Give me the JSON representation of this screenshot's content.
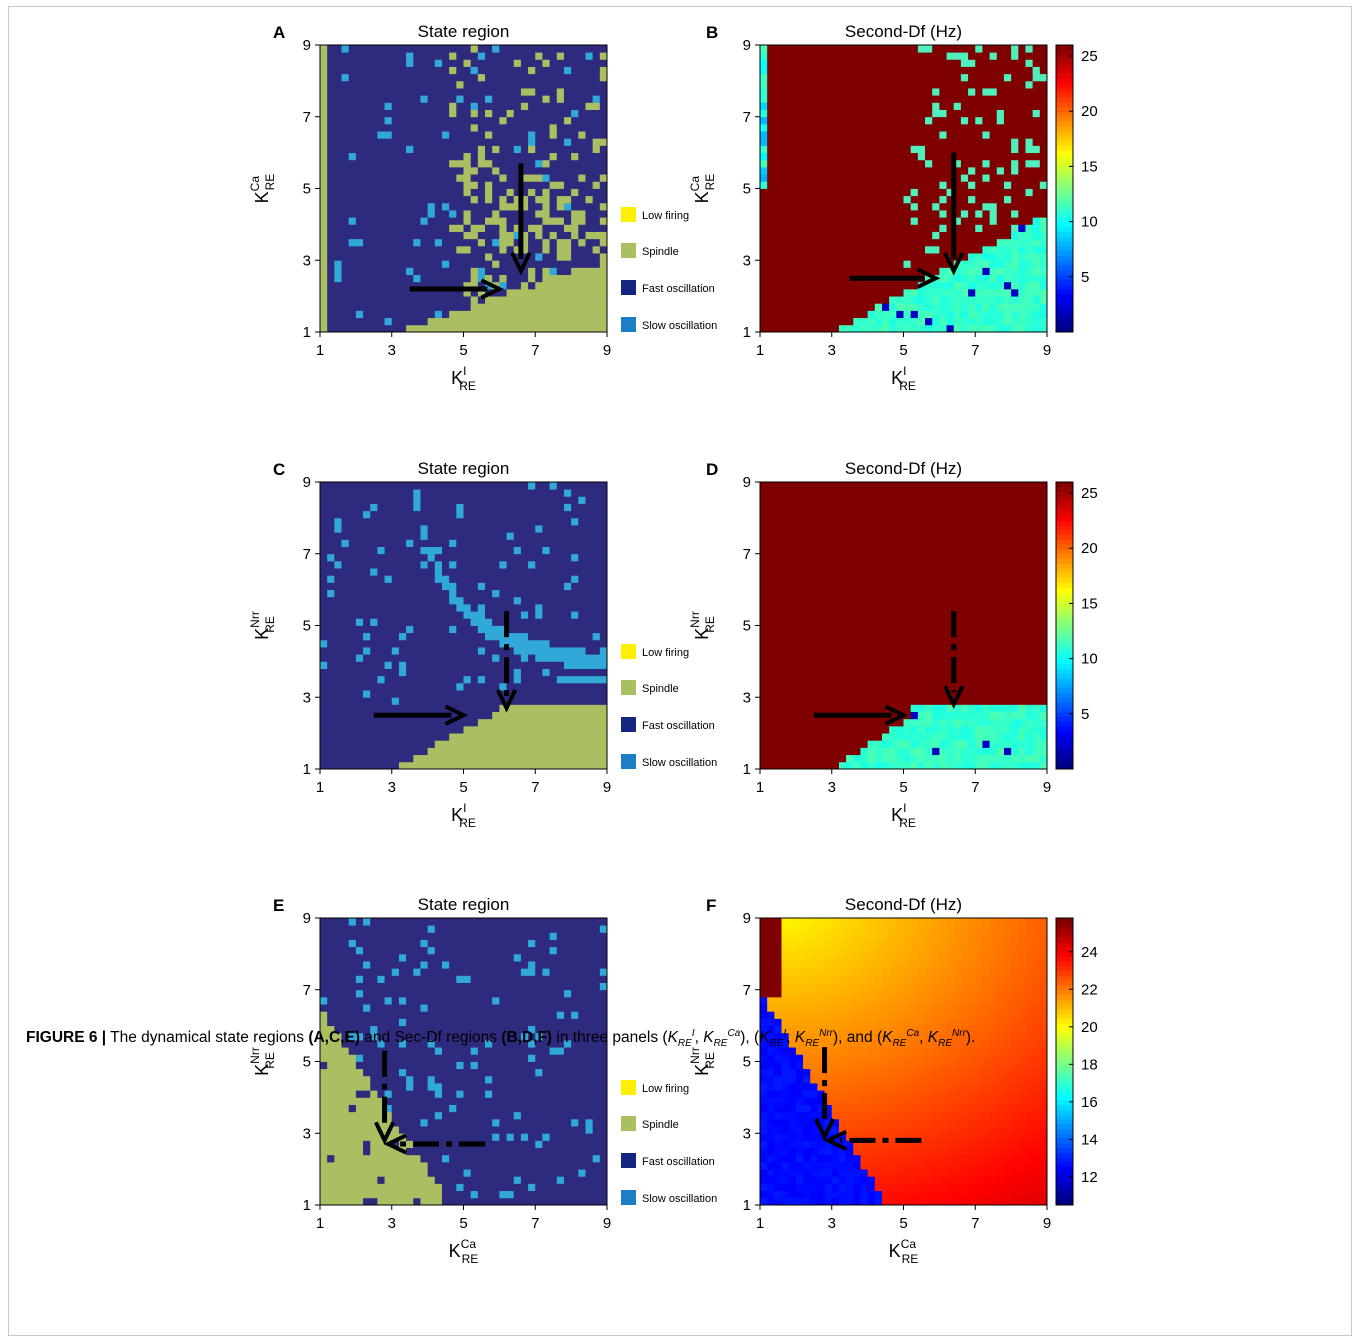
{
  "legend_items": [
    {
      "label": "Low firing",
      "color": "#ffef00"
    },
    {
      "label": "Spindle",
      "color": "#a9bf62"
    },
    {
      "label": "Fast oscillation",
      "color": "#14267f"
    },
    {
      "label": "Slow oscillation",
      "color": "#1a7fc6"
    }
  ],
  "colors": {
    "fast": "#2e2a7e",
    "spindle": "#a9bf62",
    "slow": "#30a8d8",
    "dfHigh": "#7f0000",
    "dfLow": "#4ff0bd",
    "arrow": "#000000"
  },
  "chart_data": [
    {
      "panel": "A",
      "type": "heatmap",
      "title": "State region",
      "xlabel": {
        "base": "K",
        "sub": "RE",
        "sup": "I"
      },
      "ylabel": {
        "base": "K",
        "sub": "RE",
        "sup": "Ca"
      },
      "xlim": [
        1,
        9
      ],
      "ylim": [
        1,
        9
      ],
      "ticks": [
        1,
        3,
        5,
        7,
        9
      ],
      "legend": true,
      "regions": {
        "default": "Fast oscillation",
        "lower": "Spindle",
        "scatter": [
          "Spindle",
          "Slow oscillation"
        ]
      },
      "arrows": [
        {
          "style": "solid",
          "from": [
            3.5,
            2.2
          ],
          "to": [
            6.0,
            2.2
          ]
        },
        {
          "style": "solid",
          "from": [
            6.6,
            5.7
          ],
          "to": [
            6.6,
            2.7
          ]
        }
      ]
    },
    {
      "panel": "B",
      "type": "heatmap",
      "title": "Second-Df (Hz)",
      "xlabel": {
        "base": "K",
        "sub": "RE",
        "sup": "I"
      },
      "ylabel": {
        "base": "K",
        "sub": "RE",
        "sup": "Ca"
      },
      "xlim": [
        1,
        9
      ],
      "ylim": [
        1,
        9
      ],
      "ticks": [
        1,
        3,
        5,
        7,
        9
      ],
      "colorbar": {
        "min": 0,
        "max": 26,
        "ticks": [
          5,
          10,
          15,
          20,
          25
        ],
        "colormap": "jet"
      },
      "regions": {
        "upper_hz": 25.6,
        "lower_hz": 12
      },
      "arrows": [
        {
          "style": "solid",
          "from": [
            3.5,
            2.5
          ],
          "to": [
            5.9,
            2.5
          ]
        },
        {
          "style": "solid",
          "from": [
            6.4,
            6.0
          ],
          "to": [
            6.4,
            2.7
          ]
        }
      ]
    },
    {
      "panel": "C",
      "type": "heatmap",
      "title": "State region",
      "xlabel": {
        "base": "K",
        "sub": "RE",
        "sup": "I"
      },
      "ylabel": {
        "base": "K",
        "sub": "RE",
        "sup": "Nrr"
      },
      "xlim": [
        1,
        9
      ],
      "ylim": [
        1,
        9
      ],
      "ticks": [
        1,
        3,
        5,
        7,
        9
      ],
      "legend": true,
      "regions": {
        "default": "Fast oscillation",
        "lower": "Spindle",
        "bands": "Slow oscillation"
      },
      "arrows": [
        {
          "style": "solid",
          "from": [
            2.5,
            2.5
          ],
          "to": [
            5.0,
            2.5
          ]
        },
        {
          "style": "dashdot",
          "from": [
            6.2,
            5.4
          ],
          "to": [
            6.2,
            2.7
          ]
        }
      ]
    },
    {
      "panel": "D",
      "type": "heatmap",
      "title": "Second-Df (Hz)",
      "xlabel": {
        "base": "K",
        "sub": "RE",
        "sup": "I"
      },
      "ylabel": {
        "base": "K",
        "sub": "RE",
        "sup": "Nrr"
      },
      "xlim": [
        1,
        9
      ],
      "ylim": [
        1,
        9
      ],
      "ticks": [
        1,
        3,
        5,
        7,
        9
      ],
      "colorbar": {
        "min": 0,
        "max": 26,
        "ticks": [
          5,
          10,
          15,
          20,
          25
        ],
        "colormap": "jet"
      },
      "regions": {
        "upper_hz": 25.6,
        "lower_hz": 12
      },
      "arrows": [
        {
          "style": "solid",
          "from": [
            2.5,
            2.5
          ],
          "to": [
            5.0,
            2.5
          ]
        },
        {
          "style": "dashdot",
          "from": [
            6.4,
            5.4
          ],
          "to": [
            6.4,
            2.8
          ]
        }
      ]
    },
    {
      "panel": "E",
      "type": "heatmap",
      "title": "State region",
      "xlabel": {
        "base": "K",
        "sub": "RE",
        "sup": "Ca"
      },
      "ylabel": {
        "base": "K",
        "sub": "RE",
        "sup": "Nrr"
      },
      "xlim": [
        1,
        9
      ],
      "ylim": [
        1,
        9
      ],
      "ticks": [
        1,
        3,
        5,
        7,
        9
      ],
      "legend": true,
      "regions": {
        "default": "Fast oscillation",
        "lower_left": "Spindle",
        "scatter": "Slow oscillation"
      },
      "arrows": [
        {
          "style": "dashdot",
          "from": [
            2.8,
            5.3
          ],
          "to": [
            2.8,
            2.8
          ]
        },
        {
          "style": "dashdot",
          "from": [
            5.6,
            2.7
          ],
          "to": [
            2.9,
            2.7
          ]
        }
      ]
    },
    {
      "panel": "F",
      "type": "heatmap",
      "title": "Second-Df (Hz)",
      "xlabel": {
        "base": "K",
        "sub": "RE",
        "sup": "Ca"
      },
      "ylabel": {
        "base": "K",
        "sub": "RE",
        "sup": "Nrr"
      },
      "xlim": [
        1,
        9
      ],
      "ylim": [
        1,
        9
      ],
      "ticks": [
        1,
        3,
        5,
        7,
        9
      ],
      "colorbar": {
        "min": 10.5,
        "max": 25.8,
        "ticks": [
          12,
          14,
          16,
          18,
          20,
          22,
          24
        ],
        "colormap": "jet"
      },
      "regions": {
        "lower_left_hz": 11,
        "gradient_hz": [
          17.5,
          24
        ]
      },
      "arrows": [
        {
          "style": "dashdot",
          "from": [
            2.8,
            5.4
          ],
          "to": [
            2.8,
            2.9
          ]
        },
        {
          "style": "dashdot",
          "from": [
            5.5,
            2.8
          ],
          "to": [
            2.9,
            2.8
          ]
        }
      ]
    }
  ],
  "caption": {
    "label": "FIGURE 6 |",
    "t1": " The dynamical state regions ",
    "b1": "(A,C,E)",
    "t2": " and Sec-Df regions ",
    "b2": "(B,D,F)",
    "t3": " in three panels (",
    "p1a": "K",
    "p1a_sub": "RE",
    "p1a_sup": "I",
    "p1b": "K",
    "p1b_sub": "RE",
    "p1b_sup": "Ca",
    "t4": "), (",
    "p2a": "K",
    "p2a_sub": "RE",
    "p2a_sup": "I",
    "p2b": "K",
    "p2b_sub": "RE",
    "p2b_sup": "Nrr",
    "t5": "), and (",
    "p3a": "K",
    "p3a_sub": "RE",
    "p3a_sup": "Ca",
    "p3b": "K",
    "p3b_sub": "RE",
    "p3b_sup": "Nrr",
    "t6": ")."
  }
}
